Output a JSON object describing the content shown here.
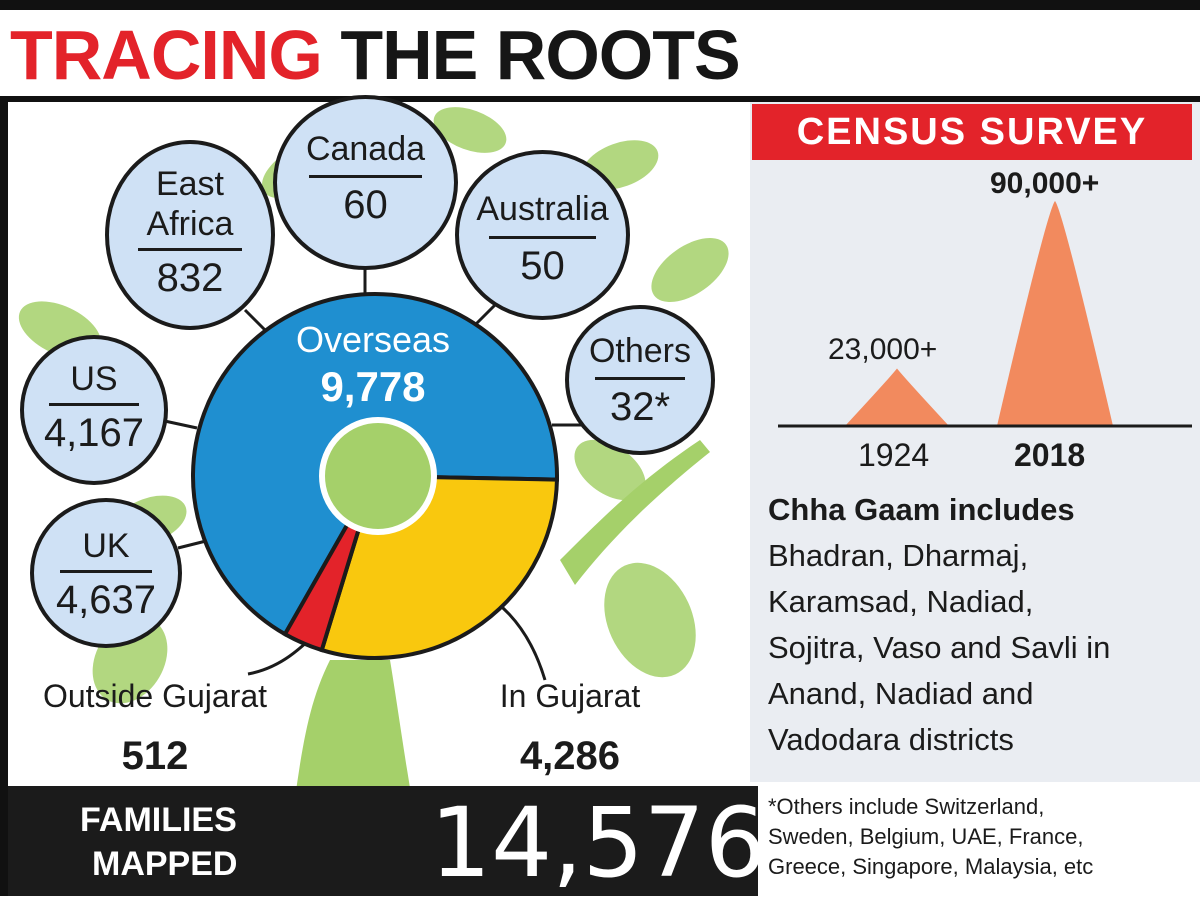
{
  "headline": {
    "part1": "TRACING",
    "part2": "THE ROOTS"
  },
  "overseas": {
    "label": "Overseas",
    "value": "9,778",
    "countries": [
      {
        "name": "East",
        "name2": "Africa",
        "value": "832"
      },
      {
        "name": "Canada",
        "value": "60"
      },
      {
        "name": "Australia",
        "value": "50"
      },
      {
        "name": "Others",
        "value": "32*"
      },
      {
        "name": "US",
        "value": "4,167"
      },
      {
        "name": "UK",
        "value": "4,637"
      }
    ]
  },
  "outside_gujarat": {
    "label": "Outside Gujarat",
    "value": "512"
  },
  "in_gujarat": {
    "label": "In Gujarat",
    "value": "4,286"
  },
  "families": {
    "label1": "FAMILIES",
    "label2": "MAPPED",
    "value": "14,576"
  },
  "census": {
    "title": "CENSUS SURVEY",
    "label_1924": "23,000+",
    "label_2018": "90,000+",
    "year_1924": "1924",
    "year_2018": "2018"
  },
  "chha_gaam": {
    "heading": "Chha Gaam includes",
    "lines": [
      "Bhadran, Dharmaj,",
      "Karamsad, Nadiad,",
      "Sojitra, Vaso and Savli in",
      "Anand, Nadiad and",
      "Vadodara districts"
    ]
  },
  "footnote": {
    "lines": [
      "*Others include Switzerland,",
      "Sweden, Belgium, UAE, France,",
      "Greece, Singapore, Malaysia, etc"
    ]
  },
  "colors": {
    "red": "#e3232a",
    "overseas": "#1f8fd0",
    "in_gujarat": "#f9c80e",
    "outside": "#e3232a",
    "bubble": "#cfe1f5",
    "leaf": "#a5d06a",
    "census_peak": "#f28a5e"
  },
  "chart_data": [
    {
      "type": "pie",
      "categories": [
        "Overseas",
        "In Gujarat",
        "Outside Gujarat"
      ],
      "values": [
        9778,
        4286,
        512
      ],
      "total": 14576,
      "breakdown": {
        "categories": [
          "East Africa",
          "Canada",
          "Australia",
          "Others",
          "US",
          "UK"
        ],
        "values": [
          832,
          60,
          50,
          32,
          4167,
          4637
        ]
      }
    },
    {
      "type": "area",
      "title": "CENSUS SURVEY",
      "categories": [
        "1924",
        "2018"
      ],
      "values": [
        23000,
        90000
      ]
    }
  ]
}
